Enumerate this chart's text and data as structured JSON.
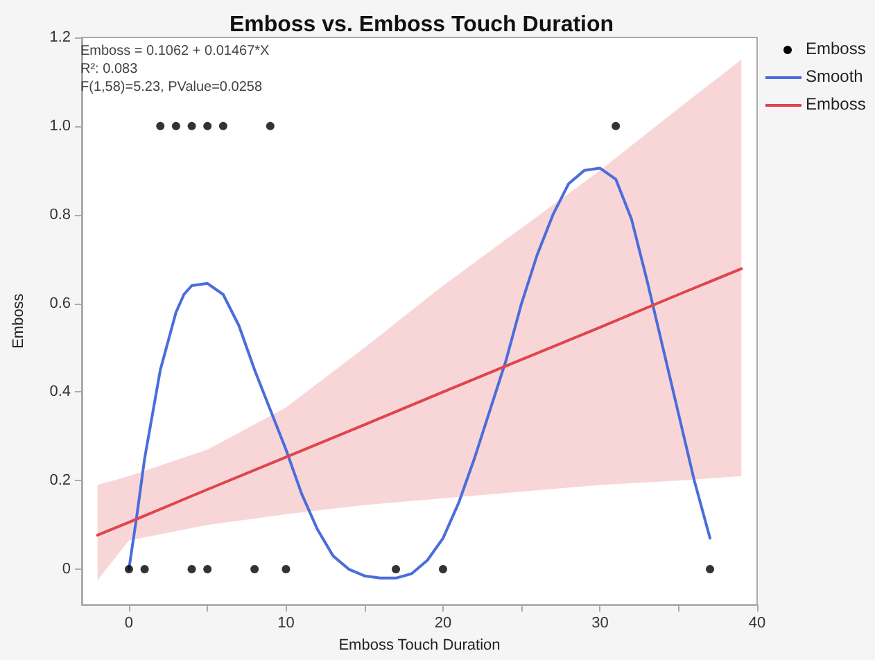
{
  "chart_data": {
    "type": "scatter",
    "title": "Emboss vs. Emboss Touch Duration",
    "xlabel": "Emboss Touch Duration",
    "ylabel": "Emboss",
    "annotations": [
      "Emboss = 0.1062 + 0.01467*X",
      "R²: 0.083",
      "F(1,58)=5.23, PValue=0.0258"
    ],
    "xlim": [
      -3,
      40
    ],
    "xticks": [
      0,
      {
        "value": 5,
        "label": null
      },
      10,
      {
        "value": 15,
        "label": null
      },
      20,
      {
        "value": 25,
        "label": null
      },
      30,
      {
        "value": 35,
        "label": null
      },
      40
    ],
    "ylim": [
      -0.08,
      1.2
    ],
    "yticks": [
      0,
      0.2,
      0.4,
      0.6,
      0.8,
      {
        "value": 1,
        "label": "1.0"
      },
      1.2
    ],
    "grid": false,
    "legend": "top right",
    "series": [
      {
        "name": "Emboss",
        "color": "#000000",
        "marker": "circle",
        "x": [
          2,
          3,
          4,
          5,
          6,
          9,
          31,
          0,
          1,
          4,
          5,
          8,
          10,
          17,
          20,
          37
        ],
        "values": [
          1,
          1,
          1,
          1,
          1,
          1,
          1,
          0,
          0,
          0,
          0,
          0,
          0,
          0,
          0,
          0
        ]
      },
      {
        "type": "line",
        "name": "Smooth",
        "color": "#4a6ddb",
        "marker": "none",
        "x": [
          0,
          0.5,
          1,
          2,
          3,
          3.5,
          4,
          5,
          6,
          7,
          8,
          9,
          10,
          11,
          12,
          13,
          14,
          15,
          16,
          17,
          18,
          19,
          20,
          21,
          22,
          23,
          24,
          25,
          26,
          27,
          28,
          29,
          30,
          31,
          32,
          33,
          34,
          35,
          36,
          37
        ],
        "values": [
          0,
          0.12,
          0.25,
          0.45,
          0.58,
          0.62,
          0.64,
          0.645,
          0.62,
          0.55,
          0.45,
          0.36,
          0.27,
          0.17,
          0.09,
          0.03,
          0,
          -0.015,
          -0.02,
          -0.02,
          -0.01,
          0.02,
          0.07,
          0.15,
          0.25,
          0.36,
          0.47,
          0.6,
          0.71,
          0.8,
          0.87,
          0.9,
          0.905,
          0.88,
          0.79,
          0.65,
          0.5,
          0.35,
          0.2,
          0.07
        ]
      },
      {
        "type": "line",
        "name": "Emboss",
        "color": "#e0444d",
        "marker": "none",
        "x": [
          -2,
          0,
          5,
          10,
          15,
          20,
          25,
          30,
          35,
          39
        ],
        "values": [
          0.077,
          0.106,
          0.18,
          0.253,
          0.326,
          0.4,
          0.473,
          0.546,
          0.62,
          0.678
        ],
        "lower": [
          -0.025,
          0.065,
          0.1,
          0.124,
          0.145,
          0.16,
          0.175,
          0.19,
          0.2,
          0.21
        ],
        "upper": [
          0.19,
          0.21,
          0.27,
          0.365,
          0.5,
          0.64,
          0.77,
          0.9,
          1.04,
          1.15
        ]
      }
    ]
  }
}
